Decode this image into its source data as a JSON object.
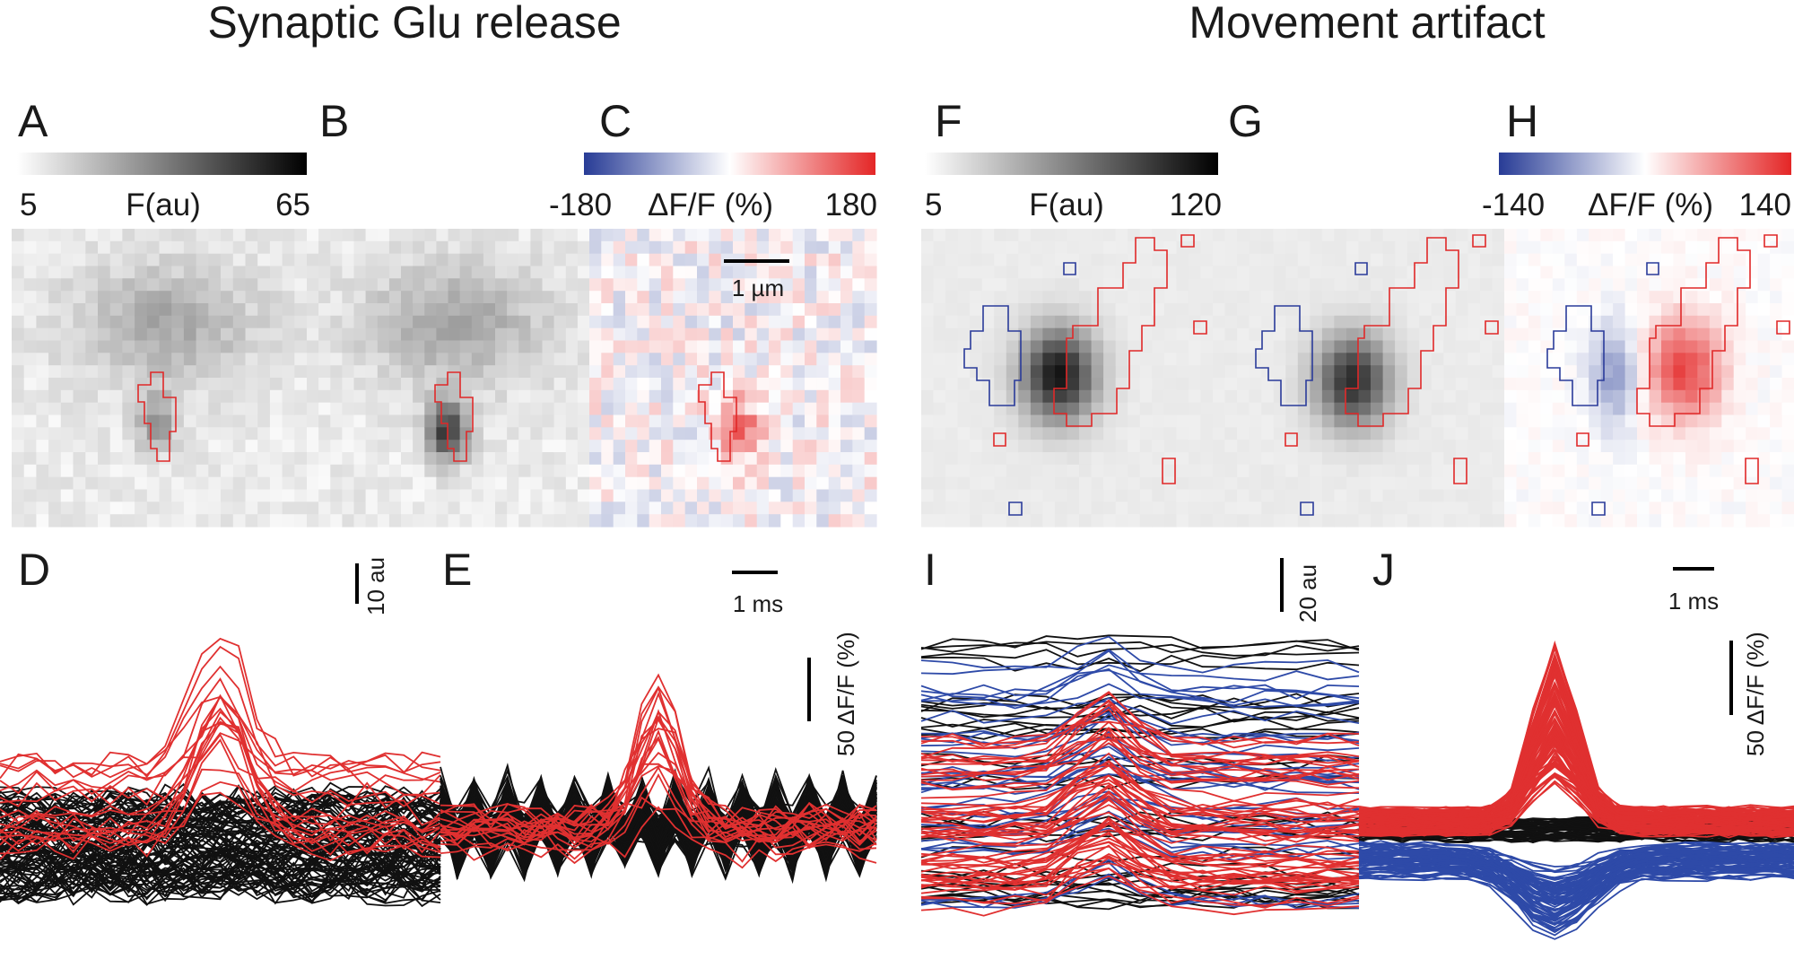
{
  "titles": {
    "left": "Synaptic Glu release",
    "right": "Movement artifact"
  },
  "panel_labels": [
    "A",
    "B",
    "C",
    "D",
    "E",
    "F",
    "G",
    "H",
    "I",
    "J"
  ],
  "colorbars": [
    {
      "min": "5",
      "label": "F(au)",
      "max": "65"
    },
    {
      "min": "-180",
      "label": "ΔF/F (%)",
      "max": "180"
    },
    {
      "min": "5",
      "label": "F(au)",
      "max": "120"
    },
    {
      "min": "-140",
      "label": "ΔF/F (%)",
      "max": "140"
    }
  ],
  "scale_bars": [
    "1 µm",
    "10 au",
    "1 ms",
    "50 ΔF/F (%)",
    "20 au",
    "1 ms",
    "50 ΔF/F (%)"
  ]
}
